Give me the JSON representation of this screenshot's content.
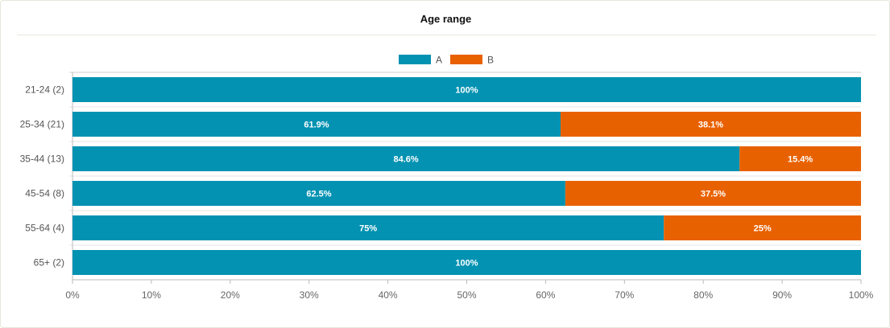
{
  "chart_data": {
    "type": "bar",
    "orientation": "horizontal",
    "stacked": true,
    "title": "Age range",
    "categories": [
      "21-24 (2)",
      "25-34 (21)",
      "35-44 (13)",
      "45-54 (8)",
      "55-64 (4)",
      "65+ (2)"
    ],
    "series": [
      {
        "name": "A",
        "color": "#0392b2",
        "values": [
          100,
          61.9,
          84.6,
          62.5,
          75,
          100
        ],
        "labels": [
          "100%",
          "61.9%",
          "84.6%",
          "62.5%",
          "75%",
          "100%"
        ]
      },
      {
        "name": "B",
        "color": "#e86100",
        "values": [
          0,
          38.1,
          15.4,
          37.5,
          25,
          0
        ],
        "labels": [
          "",
          "38.1%",
          "15.4%",
          "37.5%",
          "25%",
          ""
        ]
      }
    ],
    "xlim": [
      0,
      100
    ],
    "xticks": [
      "0%",
      "10%",
      "20%",
      "30%",
      "40%",
      "50%",
      "60%",
      "70%",
      "80%",
      "90%",
      "100%"
    ],
    "legend_position": "top-center",
    "grid": false
  }
}
